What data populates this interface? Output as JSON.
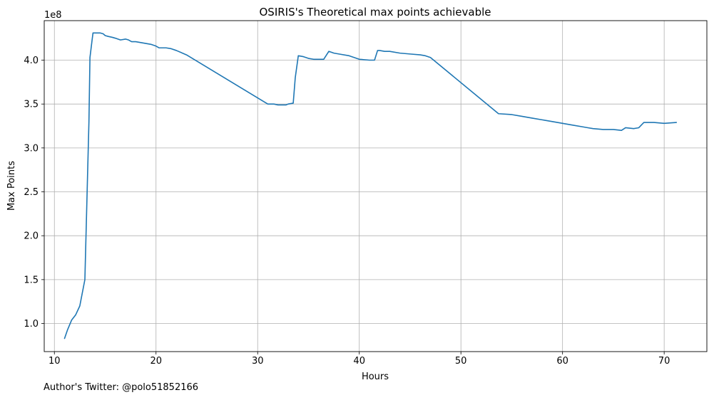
{
  "chart_data": {
    "type": "line",
    "title": "OSIRIS's Theoretical max points achievable",
    "xlabel": "Hours",
    "ylabel": "Max Points",
    "offset_label": "1e8",
    "xlim": [
      9,
      74.2
    ],
    "ylim": [
      0.68,
      4.45
    ],
    "x_ticks": [
      10,
      20,
      30,
      40,
      50,
      60,
      70
    ],
    "x_tick_labels": [
      "10",
      "20",
      "30",
      "40",
      "50",
      "60",
      "70"
    ],
    "y_ticks": [
      1.0,
      1.5,
      2.0,
      2.5,
      3.0,
      3.5,
      4.0
    ],
    "y_tick_labels": [
      "1.0",
      "1.5",
      "2.0",
      "2.5",
      "3.0",
      "3.5",
      "4.0"
    ],
    "grid": true,
    "legend": "none",
    "series": [
      {
        "color": "#1f77b4",
        "x": [
          11.0,
          11.3,
          11.7,
          12.1,
          12.5,
          13.0,
          13.2,
          13.4,
          13.5,
          13.7,
          13.8,
          14.0,
          14.5,
          14.8,
          15.0,
          15.3,
          15.7,
          16.0,
          16.5,
          17.0,
          17.3,
          17.6,
          18.0,
          18.5,
          19.0,
          19.5,
          20.0,
          20.3,
          21.0,
          21.5,
          22.0,
          23.0,
          31.0,
          31.6,
          32.0,
          32.4,
          32.8,
          33.0,
          33.5,
          33.7,
          34.0,
          34.5,
          35.0,
          35.5,
          36.0,
          36.5,
          37.0,
          37.5,
          38.0,
          39.0,
          40.0,
          41.0,
          41.5,
          41.8,
          42.0,
          42.5,
          43.0,
          44.0,
          45.0,
          46.0,
          46.5,
          47.0,
          53.7,
          55.0,
          56.0,
          57.0,
          58.0,
          59.0,
          60.0,
          61.0,
          62.0,
          62.5,
          63.0,
          64.0,
          65.0,
          65.8,
          66.2,
          67.0,
          67.5,
          68.0,
          69.0,
          70.0,
          71.2
        ],
        "y": [
          0.83,
          0.93,
          1.04,
          1.1,
          1.2,
          1.5,
          2.4,
          3.3,
          4.03,
          4.22,
          4.31,
          4.31,
          4.31,
          4.3,
          4.28,
          4.27,
          4.26,
          4.25,
          4.23,
          4.24,
          4.23,
          4.21,
          4.21,
          4.2,
          4.19,
          4.18,
          4.16,
          4.14,
          4.14,
          4.13,
          4.11,
          4.06,
          3.5,
          3.5,
          3.49,
          3.49,
          3.49,
          3.5,
          3.51,
          3.8,
          4.05,
          4.04,
          4.02,
          4.01,
          4.01,
          4.01,
          4.1,
          4.08,
          4.07,
          4.05,
          4.01,
          4.0,
          4.0,
          4.11,
          4.11,
          4.1,
          4.1,
          4.08,
          4.07,
          4.06,
          4.05,
          4.03,
          3.39,
          3.38,
          3.36,
          3.34,
          3.32,
          3.3,
          3.28,
          3.26,
          3.24,
          3.23,
          3.22,
          3.21,
          3.21,
          3.2,
          3.23,
          3.22,
          3.23,
          3.29,
          3.29,
          3.28,
          3.29
        ]
      }
    ]
  },
  "footer": {
    "credit": "Author's Twitter: @polo51852166"
  }
}
